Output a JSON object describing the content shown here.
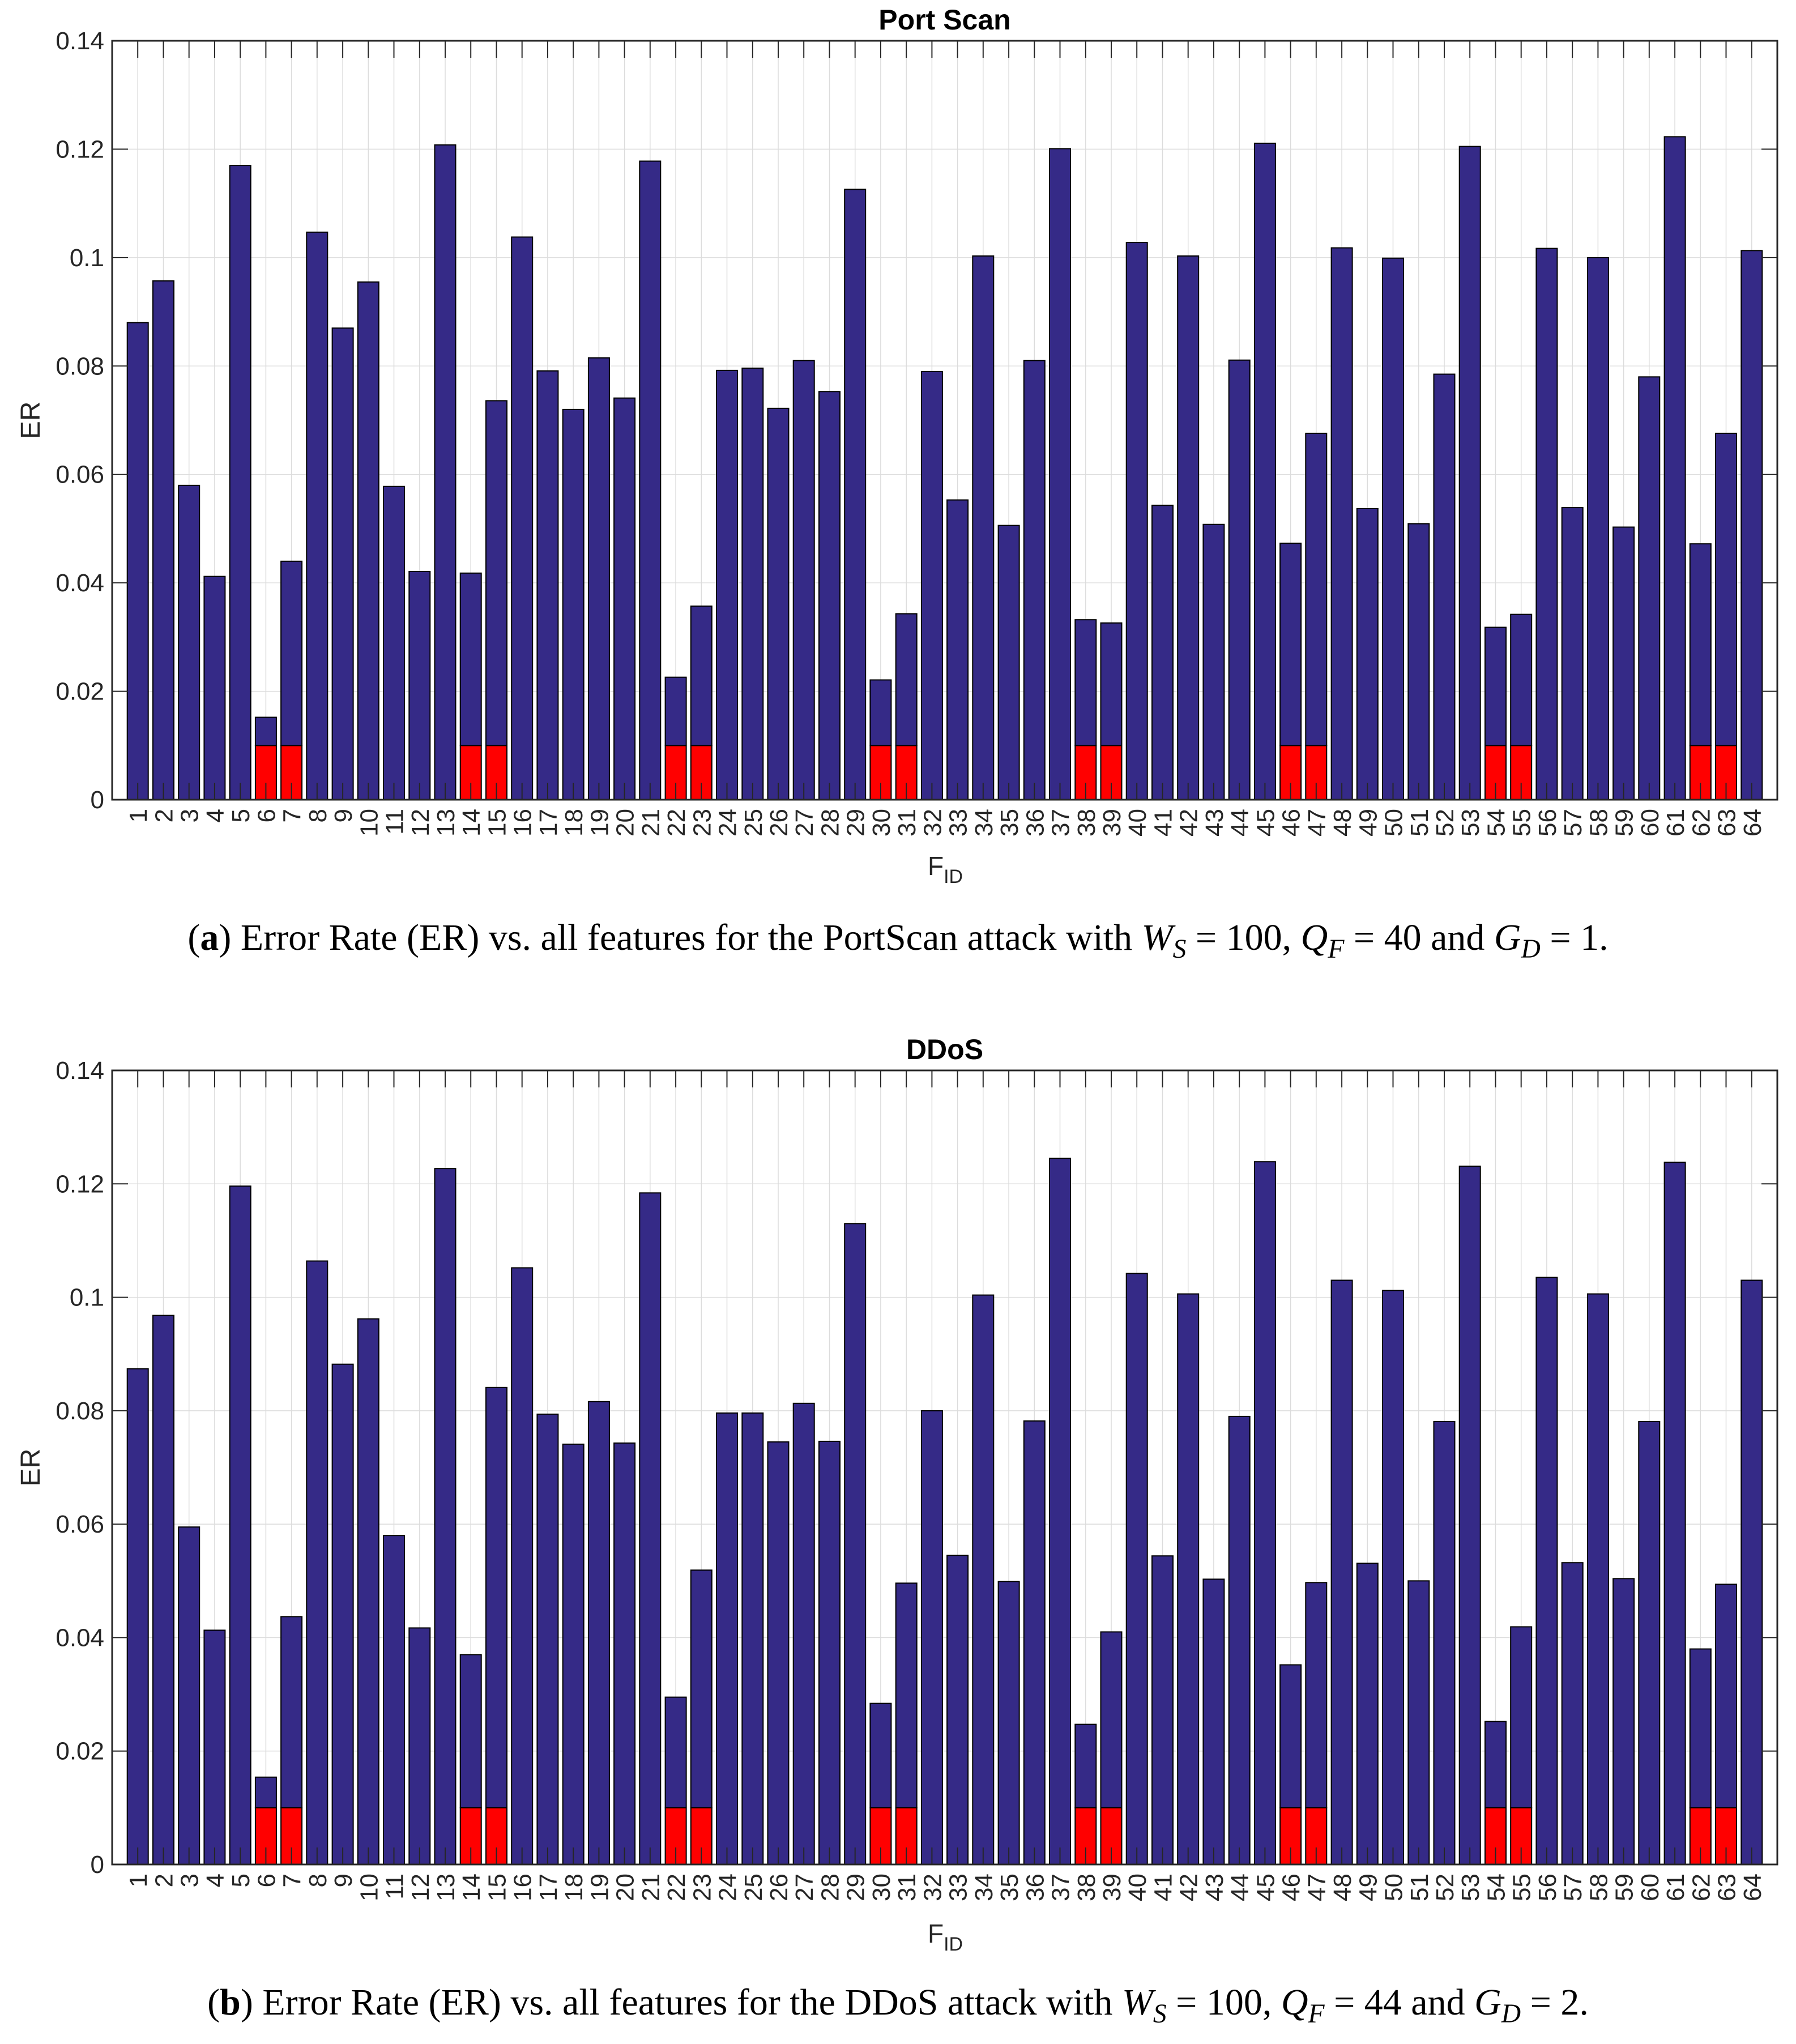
{
  "chart_data": [
    {
      "type": "bar",
      "title": "Port Scan",
      "ylabel": "ER",
      "xlabel_main": "F",
      "xlabel_sub": "ID",
      "ylim": [
        0,
        0.14
      ],
      "y_tick_labels": [
        "0",
        "0.02",
        "0.04",
        "0.06",
        "0.08",
        "0.1",
        "0.12",
        "0.14"
      ],
      "y_tick_values": [
        0,
        0.02,
        0.04,
        0.06,
        0.08,
        0.1,
        0.12,
        0.14
      ],
      "grid": true,
      "bar_color": "#352a87",
      "highlight_color": "#ff0000",
      "edge_color": "#000000",
      "highlight_threshold": 0.01,
      "highlighted_features": [
        6,
        7,
        14,
        15,
        22,
        23,
        30,
        31,
        38,
        39,
        46,
        47,
        54,
        55,
        62,
        63
      ],
      "categories": [
        1,
        2,
        3,
        4,
        5,
        6,
        7,
        8,
        9,
        10,
        11,
        12,
        13,
        14,
        15,
        16,
        17,
        18,
        19,
        20,
        21,
        22,
        23,
        24,
        25,
        26,
        27,
        28,
        29,
        30,
        31,
        32,
        33,
        34,
        35,
        36,
        37,
        38,
        39,
        40,
        41,
        42,
        43,
        44,
        45,
        46,
        47,
        48,
        49,
        50,
        51,
        52,
        53,
        54,
        55,
        56,
        57,
        58,
        59,
        60,
        61,
        62,
        63,
        64
      ],
      "values": [
        0.088,
        0.0957,
        0.058,
        0.0412,
        0.117,
        0.0152,
        0.044,
        0.1047,
        0.087,
        0.0955,
        0.0578,
        0.0421,
        0.1208,
        0.0418,
        0.0736,
        0.1038,
        0.0791,
        0.072,
        0.0815,
        0.0741,
        0.1178,
        0.0226,
        0.0357,
        0.0792,
        0.0796,
        0.0722,
        0.081,
        0.0753,
        0.1126,
        0.0221,
        0.0343,
        0.079,
        0.0553,
        0.1003,
        0.0506,
        0.081,
        0.1201,
        0.0332,
        0.0326,
        0.1028,
        0.0543,
        0.1003,
        0.0508,
        0.0811,
        0.1211,
        0.0473,
        0.0676,
        0.1018,
        0.0537,
        0.0999,
        0.0509,
        0.0785,
        0.1205,
        0.0318,
        0.0342,
        0.1017,
        0.0539,
        0.1,
        0.0503,
        0.078,
        0.1223,
        0.0472,
        0.0676,
        0.1013
      ]
    },
    {
      "type": "bar",
      "title": "DDoS",
      "ylabel": "ER",
      "xlabel_main": "F",
      "xlabel_sub": "ID",
      "ylim": [
        0,
        0.14
      ],
      "y_tick_labels": [
        "0",
        "0.02",
        "0.04",
        "0.06",
        "0.08",
        "0.1",
        "0.12",
        "0.14"
      ],
      "y_tick_values": [
        0,
        0.02,
        0.04,
        0.06,
        0.08,
        0.1,
        0.12,
        0.14
      ],
      "grid": true,
      "bar_color": "#352a87",
      "highlight_color": "#ff0000",
      "edge_color": "#000000",
      "highlight_threshold": 0.01,
      "highlighted_features": [
        6,
        7,
        14,
        15,
        22,
        23,
        30,
        31,
        38,
        39,
        46,
        47,
        54,
        55,
        62,
        63
      ],
      "categories": [
        1,
        2,
        3,
        4,
        5,
        6,
        7,
        8,
        9,
        10,
        11,
        12,
        13,
        14,
        15,
        16,
        17,
        18,
        19,
        20,
        21,
        22,
        23,
        24,
        25,
        26,
        27,
        28,
        29,
        30,
        31,
        32,
        33,
        34,
        35,
        36,
        37,
        38,
        39,
        40,
        41,
        42,
        43,
        44,
        45,
        46,
        47,
        48,
        49,
        50,
        51,
        52,
        53,
        54,
        55,
        56,
        57,
        58,
        59,
        60,
        61,
        62,
        63,
        64
      ],
      "values": [
        0.0874,
        0.0968,
        0.0595,
        0.0413,
        0.1196,
        0.0154,
        0.0437,
        0.1064,
        0.0882,
        0.0962,
        0.058,
        0.0417,
        0.1227,
        0.037,
        0.0841,
        0.1052,
        0.0794,
        0.0741,
        0.0816,
        0.0743,
        0.1184,
        0.0295,
        0.0519,
        0.0796,
        0.0796,
        0.0745,
        0.0813,
        0.0746,
        0.113,
        0.0284,
        0.0496,
        0.08,
        0.0545,
        0.1004,
        0.0499,
        0.0782,
        0.1245,
        0.0247,
        0.041,
        0.1042,
        0.0544,
        0.1006,
        0.0503,
        0.079,
        0.1239,
        0.0352,
        0.0497,
        0.103,
        0.0531,
        0.1012,
        0.05,
        0.0781,
        0.1231,
        0.0252,
        0.0419,
        0.1035,
        0.0532,
        0.1006,
        0.0504,
        0.0781,
        0.1238,
        0.038,
        0.0494,
        0.103
      ]
    }
  ],
  "style_colors": {
    "grid_color": "#dcdcdc",
    "axis_color": "#262626",
    "title_color": "#000000"
  },
  "captions": [
    {
      "letter": "a",
      "segments": [
        {
          "t": " Error Rate (ER) vs. all features for the PortScan attack with "
        },
        {
          "t": "W",
          "italic": true,
          "sub": "S"
        },
        {
          "t": " = 100, "
        },
        {
          "t": "Q",
          "italic": true,
          "sub": "F"
        },
        {
          "t": " = 40 and "
        },
        {
          "t": "G",
          "italic": true,
          "sub": "D"
        },
        {
          "t": " = 1."
        }
      ]
    },
    {
      "letter": "b",
      "segments": [
        {
          "t": " Error Rate (ER) vs. all features for the DDoS attack with "
        },
        {
          "t": "W",
          "italic": true,
          "sub": "S"
        },
        {
          "t": " = 100, "
        },
        {
          "t": "Q",
          "italic": true,
          "sub": "F"
        },
        {
          "t": " = 44 and "
        },
        {
          "t": "G",
          "italic": true,
          "sub": "D"
        },
        {
          "t": " = 2."
        }
      ]
    }
  ]
}
